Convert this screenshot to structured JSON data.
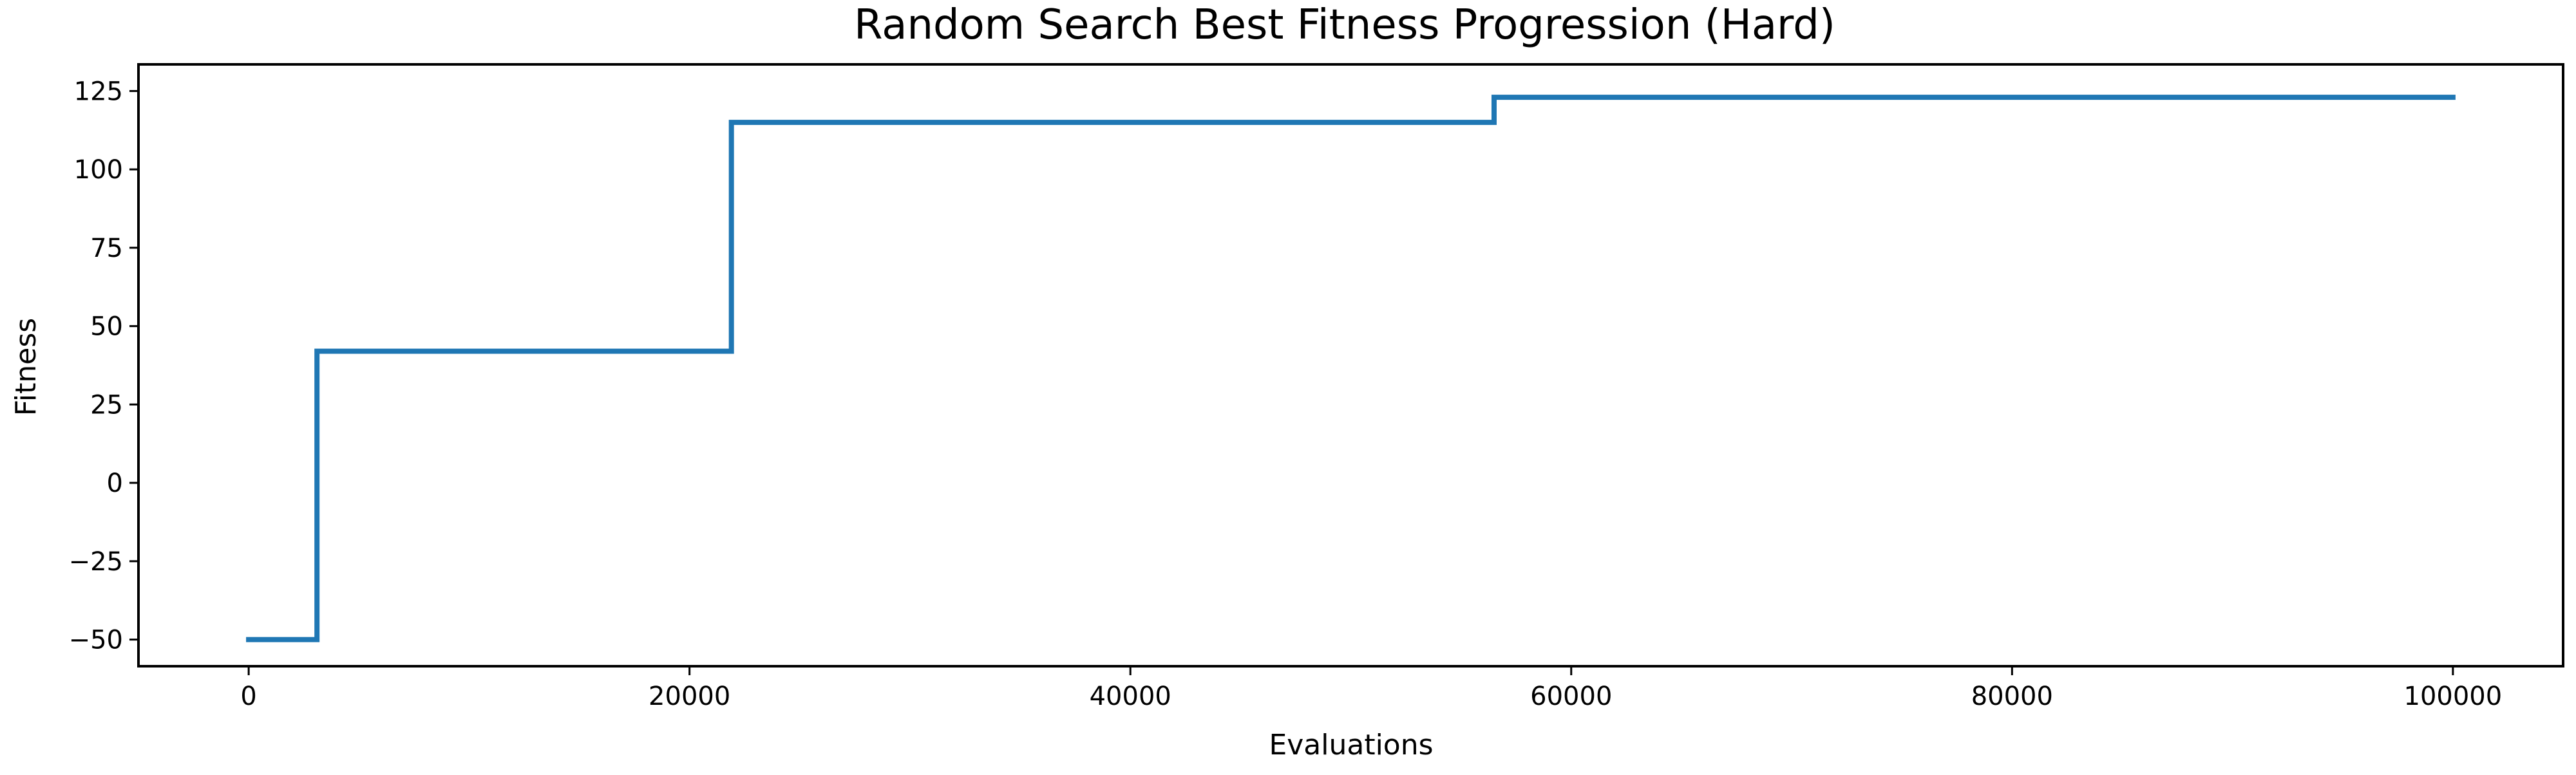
{
  "chart_data": {
    "type": "line",
    "drawstyle": "steps-post",
    "title": "Random Search Best Fitness Progression (Hard)",
    "xlabel": "Evaluations",
    "ylabel": "Fitness",
    "xlim": [
      -5000,
      105000
    ],
    "ylim": [
      -58.5,
      133.5
    ],
    "xticks": [
      0,
      20000,
      40000,
      60000,
      80000,
      100000
    ],
    "xtick_labels": [
      "0",
      "20000",
      "40000",
      "60000",
      "80000",
      "100000"
    ],
    "yticks": [
      -50,
      -25,
      0,
      25,
      50,
      75,
      100,
      125
    ],
    "ytick_labels": [
      "−50",
      "−25",
      "0",
      "25",
      "50",
      "75",
      "100",
      "125"
    ],
    "grid": false,
    "legend": "none",
    "series": [
      {
        "color": "#1f77b4",
        "points": [
          {
            "x": 0,
            "y": -50
          },
          {
            "x": 3100,
            "y": 42
          },
          {
            "x": 21900,
            "y": 115
          },
          {
            "x": 56500,
            "y": 123
          },
          {
            "x": 100000,
            "y": 123
          }
        ]
      }
    ]
  }
}
